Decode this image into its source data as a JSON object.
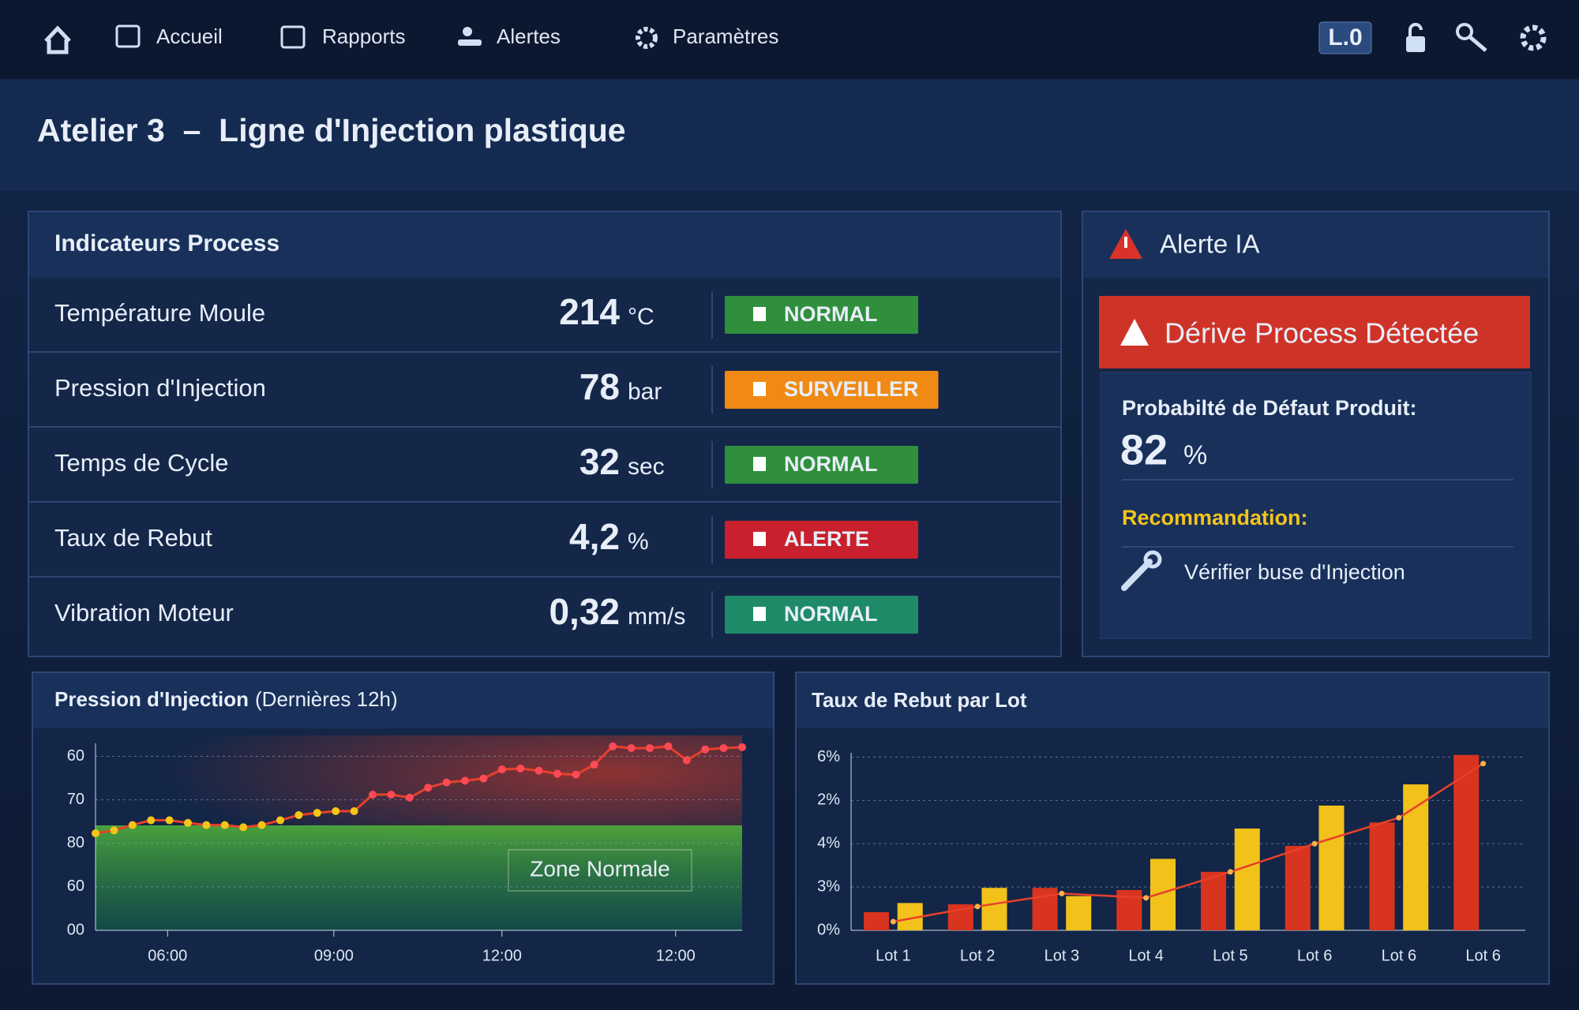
{
  "nav": {
    "items": [
      "Accueil",
      "Rapports",
      "Alertes",
      "Paramètres"
    ],
    "badge": "L.0"
  },
  "header": {
    "title": "Atelier 3  –  Ligne d'Injection plastique"
  },
  "indicators": {
    "title": "Indicateurs Process",
    "rows": [
      {
        "label": "Température Moule",
        "value": "214",
        "unit": "°C",
        "status": "NORMAL",
        "color": "#2f8f3c"
      },
      {
        "label": "Pression d'Injection",
        "value": "78",
        "unit": "bar",
        "status": "SURVEILLER",
        "color": "#f08a14"
      },
      {
        "label": "Temps de Cycle",
        "value": "32",
        "unit": "sec",
        "status": "NORMAL",
        "color": "#2f8f3c"
      },
      {
        "label": "Taux de Rebut",
        "value": "4,2",
        "unit": "%",
        "status": "ALERTE",
        "color": "#c8202c"
      },
      {
        "label": "Vibration Moteur",
        "value": "0,32",
        "unit": "mm/s",
        "status": "NORMAL",
        "color": "#1f8a68"
      }
    ]
  },
  "alert": {
    "title": "Alerte IA",
    "banner": "Dérive Process Détectée",
    "probability_label": "Probabilté de Défaut Produit:",
    "probability_value": "82",
    "probability_unit": "%",
    "recommendation_label": "Recommandation:",
    "recommendation": "Vérifier buse d'Injection"
  },
  "chart_data": [
    {
      "type": "line",
      "title": "Pression d'Injection",
      "subtitle": "(Dernières 12h)",
      "annotation": "Zone Normale",
      "x": [
        0,
        1,
        2,
        3,
        4,
        5,
        6,
        7,
        8,
        9,
        10,
        11,
        12,
        13,
        14,
        15,
        16,
        17,
        18,
        19,
        20,
        21,
        22,
        23,
        24,
        25,
        26,
        27,
        28,
        29,
        30,
        31,
        32,
        33,
        34,
        35
      ],
      "series": [
        {
          "color": "#e8402a",
          "values": [
            2.23,
            2.3,
            2.42,
            2.53,
            2.53,
            2.47,
            2.42,
            2.42,
            2.37,
            2.42,
            2.53,
            2.65,
            2.7,
            2.74,
            2.74,
            3.12,
            3.12,
            3.05,
            3.28,
            3.4,
            3.44,
            3.49,
            3.7,
            3.72,
            3.67,
            3.6,
            3.58,
            3.81,
            4.23,
            4.19,
            4.19,
            4.23,
            3.91,
            4.16,
            4.19,
            4.21
          ]
        }
      ],
      "xlim": [
        0,
        35
      ],
      "xticks": [
        {
          "value": 3.9,
          "label": "06:00"
        },
        {
          "value": 12.9,
          "label": "09:00"
        },
        {
          "value": 22.0,
          "label": "12:00"
        },
        {
          "value": 31.4,
          "label": "12:00"
        }
      ],
      "ylim": [
        0,
        4.3
      ],
      "yticks": [
        {
          "value": 0,
          "label": "00"
        },
        {
          "value": 1,
          "label": "60"
        },
        {
          "value": 2,
          "label": "80"
        },
        {
          "value": 3,
          "label": "70"
        },
        {
          "value": 4,
          "label": "60"
        }
      ],
      "grid": true
    },
    {
      "type": "bar",
      "title": "Taux de Rebut par Lot",
      "categories": [
        "Lot 1",
        "Lot 2",
        "Lot 3",
        "Lot 4",
        "Lot 5",
        "Lot 6",
        "Lot 6",
        "Lot 6"
      ],
      "series": [
        {
          "color": "#d9341f",
          "values": [
            0.42,
            0.6,
            0.98,
            0.93,
            1.35,
            1.95,
            2.49,
            4.05
          ]
        },
        {
          "color": "#f2c21b",
          "values": [
            0.63,
            0.98,
            0.79,
            1.65,
            2.35,
            2.88,
            3.37,
            null
          ]
        },
        {
          "type": "line",
          "color": "#e8402a",
          "values": [
            0.2,
            0.55,
            0.85,
            0.75,
            1.35,
            2.0,
            2.6,
            3.85
          ]
        }
      ],
      "ylim": [
        0,
        4.1
      ],
      "yticks": [
        {
          "value": 0,
          "label": "0%"
        },
        {
          "value": 1,
          "label": "3%"
        },
        {
          "value": 2,
          "label": "4%"
        },
        {
          "value": 3,
          "label": "2%"
        },
        {
          "value": 4,
          "label": "6%"
        }
      ],
      "grid": true
    }
  ]
}
